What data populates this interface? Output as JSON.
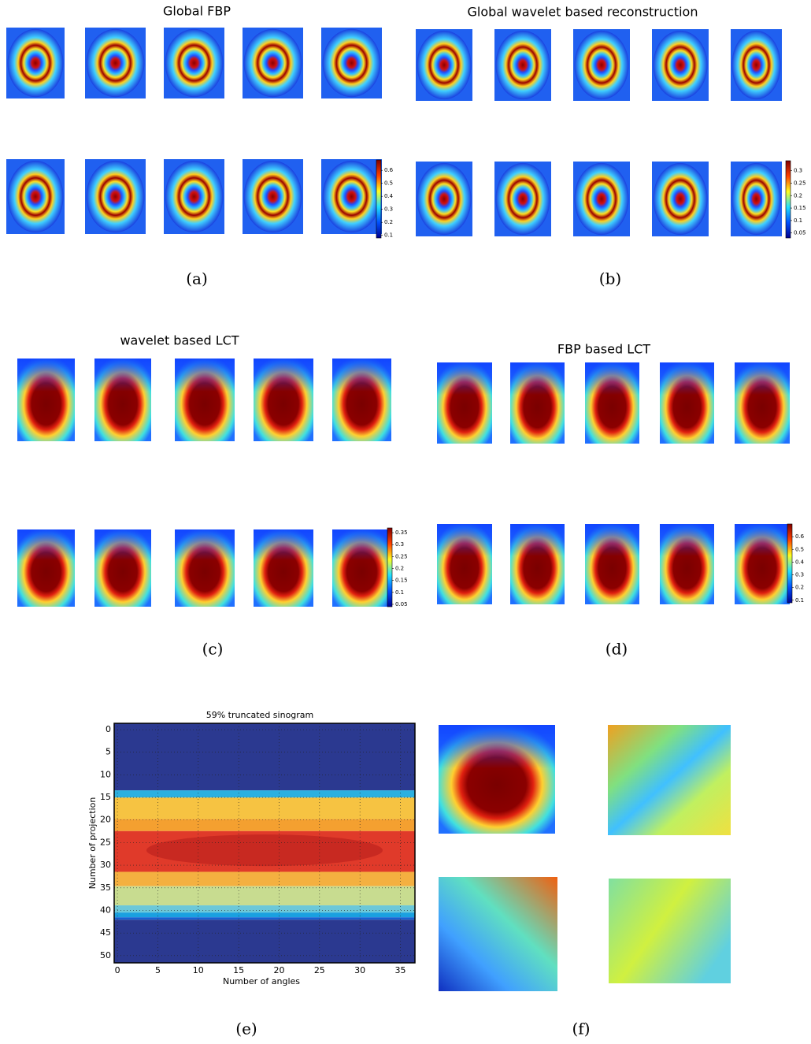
{
  "panels": [
    {
      "title": "Global FBP",
      "caption": "(a)",
      "colorbar": {
        "range": [
          0.08,
          0.68
        ],
        "ticks": [
          0.1,
          0.2,
          0.3,
          0.4,
          0.5,
          0.6
        ]
      }
    },
    {
      "title": "Global wavelet based reconstruction",
      "caption": "(b)",
      "colorbar": {
        "range": [
          0.03,
          0.34
        ],
        "ticks": [
          0.05,
          0.1,
          0.15,
          0.2,
          0.25,
          0.3
        ]
      }
    },
    {
      "title": "wavelet based LCT",
      "caption": "(c)",
      "colorbar": {
        "range": [
          0.04,
          0.37
        ],
        "ticks": [
          0.05,
          0.1,
          0.15,
          0.2,
          0.25,
          0.3,
          0.35
        ]
      }
    },
    {
      "title": "FBP based LCT",
      "caption": "(d)",
      "colorbar": {
        "range": [
          0.08,
          0.7
        ],
        "ticks": [
          0.1,
          0.2,
          0.3,
          0.4,
          0.5,
          0.6
        ]
      }
    },
    {
      "caption": "(e)",
      "chart_data": {
        "type": "heatmap",
        "title": "59% truncated sinogram",
        "x_label": "Number of angles",
        "y_label": "Number of projection",
        "xlim": [
          -0.4,
          36.8
        ],
        "ylim": [
          -1.4,
          51.6
        ],
        "xticks": [
          0,
          5,
          10,
          15,
          20,
          25,
          30,
          35
        ],
        "yticks": [
          0,
          5,
          10,
          15,
          20,
          25,
          30,
          35,
          40,
          45,
          50
        ],
        "grid": true
      }
    },
    {
      "caption": "(f)"
    }
  ]
}
